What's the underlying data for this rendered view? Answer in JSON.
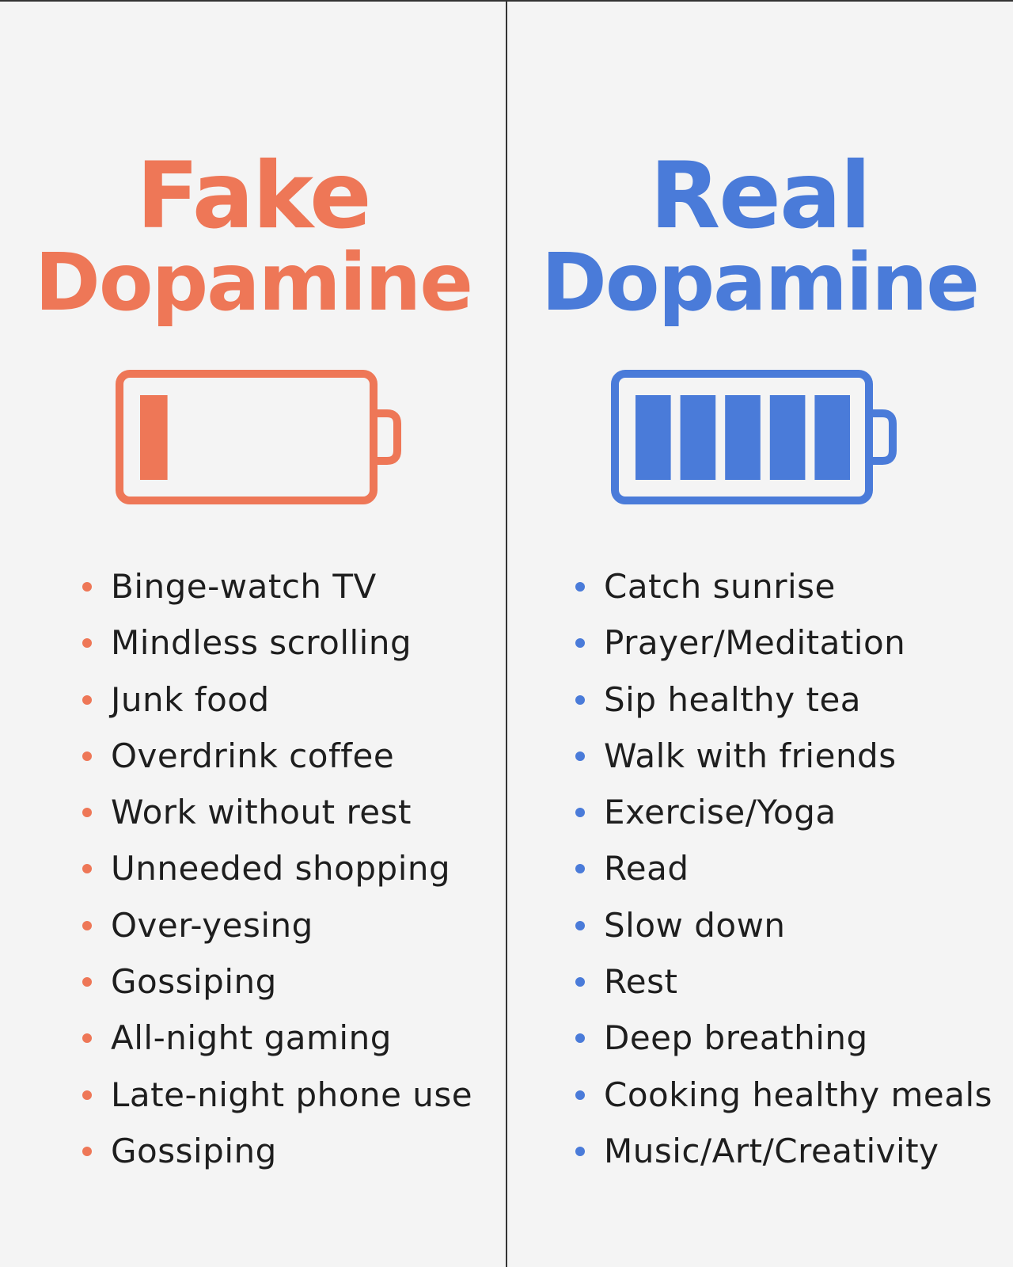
{
  "colors": {
    "fake": "#ee7757",
    "real": "#4a7bd9",
    "background": "#f4f4f4",
    "text": "#1e1e1e",
    "divider": "#333333"
  },
  "fake": {
    "title_line1": "Fake",
    "title_line2": "Dopamine",
    "battery_icon": "battery-low-icon",
    "battery_level": 0.2,
    "items": [
      "Binge-watch TV",
      "Mindless scrolling",
      "Junk food",
      "Overdrink coffee",
      "Work without rest",
      "Unneeded shopping",
      "Over-yesing",
      "Gossiping",
      "All-night gaming",
      "Late-night phone use",
      "Gossiping"
    ]
  },
  "real": {
    "title_line1": "Real",
    "title_line2": "Dopamine",
    "battery_icon": "battery-full-icon",
    "battery_level": 1.0,
    "items": [
      "Catch sunrise",
      "Prayer/Meditation",
      "Sip healthy tea",
      "Walk with friends",
      "Exercise/Yoga",
      "Read",
      "Slow down",
      "Rest",
      "Deep breathing",
      "Cooking healthy meals",
      "Music/Art/Creativity"
    ]
  }
}
